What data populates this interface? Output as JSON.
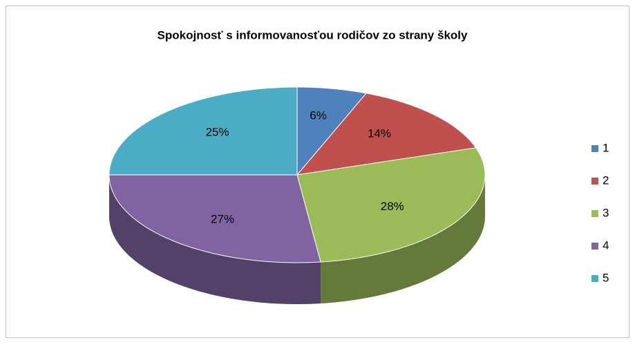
{
  "chart_data": {
    "type": "pie",
    "title": "Spokojnosť s informovanosťou rodičov zo strany školy",
    "categories": [
      "1",
      "2",
      "3",
      "4",
      "5"
    ],
    "values": [
      6,
      14,
      28,
      27,
      25
    ],
    "value_labels": [
      "6%",
      "14%",
      "28%",
      "27%",
      "25%"
    ],
    "colors": [
      "#4f81bd",
      "#c0504d",
      "#9bbb59",
      "#8064a2",
      "#4bacc6"
    ],
    "legend": "right"
  }
}
